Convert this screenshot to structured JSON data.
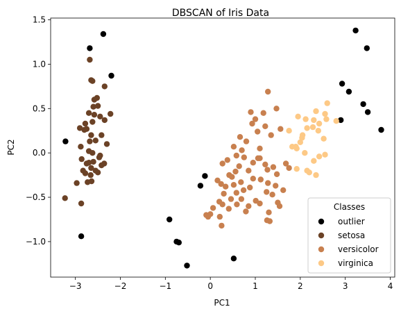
{
  "chart_data": {
    "type": "scatter",
    "title": "DBSCAN of Iris Data",
    "xlabel": "PC1",
    "ylabel": "PC2",
    "xlim": [
      -3.55,
      4.1
    ],
    "ylim": [
      -1.4,
      1.52
    ],
    "xticks": [
      -3,
      -2,
      -1,
      0,
      1,
      2,
      3,
      4
    ],
    "yticks": [
      -1.0,
      -0.5,
      0.0,
      0.5,
      1.0,
      1.5
    ],
    "xtick_labels": [
      "−3",
      "−2",
      "−1",
      "0",
      "1",
      "2",
      "3",
      "4"
    ],
    "ytick_labels": [
      "−1.0",
      "−0.5",
      "0.0",
      "0.5",
      "1.0",
      "1.5"
    ],
    "grid": false,
    "legend": {
      "title": "Classes",
      "placement": "lower-right"
    },
    "series": [
      {
        "name": "outlier",
        "color": "#000000",
        "points": [
          [
            -2.38,
            1.34
          ],
          [
            -2.68,
            1.18
          ],
          [
            -2.2,
            0.87
          ],
          [
            -3.22,
            0.13
          ],
          [
            -2.87,
            -0.94
          ],
          [
            -0.91,
            -0.75
          ],
          [
            -0.75,
            -1.0
          ],
          [
            -0.7,
            -1.01
          ],
          [
            -0.52,
            -1.27
          ],
          [
            -0.22,
            -0.37
          ],
          [
            -0.12,
            -0.26
          ],
          [
            0.52,
            -1.19
          ],
          [
            2.93,
            0.78
          ],
          [
            3.08,
            0.69
          ],
          [
            3.23,
            1.38
          ],
          [
            3.48,
            1.18
          ],
          [
            3.4,
            0.55
          ],
          [
            3.5,
            0.46
          ],
          [
            3.8,
            0.26
          ],
          [
            2.9,
            0.37
          ]
        ]
      },
      {
        "name": "setosa",
        "color": "#6b4226",
        "points": [
          [
            -2.68,
            1.05
          ],
          [
            -2.65,
            0.82
          ],
          [
            -2.62,
            0.81
          ],
          [
            -2.58,
            0.6
          ],
          [
            -2.52,
            0.62
          ],
          [
            -2.6,
            0.52
          ],
          [
            -2.5,
            0.53
          ],
          [
            -2.35,
            0.75
          ],
          [
            -2.22,
            0.44
          ],
          [
            -2.7,
            0.45
          ],
          [
            -2.62,
            0.35
          ],
          [
            -2.78,
            0.33
          ],
          [
            -2.75,
            0.27
          ],
          [
            -2.8,
            0.26
          ],
          [
            -2.45,
            0.41
          ],
          [
            -2.35,
            0.37
          ],
          [
            -2.65,
            0.2
          ],
          [
            -2.68,
            0.13
          ],
          [
            -2.55,
            0.14
          ],
          [
            -2.42,
            0.2
          ],
          [
            -2.3,
            0.1
          ],
          [
            -2.88,
            0.07
          ],
          [
            -2.62,
            0.0
          ],
          [
            -2.7,
            0.02
          ],
          [
            -2.45,
            -0.03
          ],
          [
            -2.86,
            -0.07
          ],
          [
            -2.75,
            -0.12
          ],
          [
            -2.6,
            -0.1
          ],
          [
            -2.36,
            -0.12
          ],
          [
            -2.65,
            -0.17
          ],
          [
            -2.83,
            -0.2
          ],
          [
            -2.78,
            -0.23
          ],
          [
            -2.66,
            -0.25
          ],
          [
            -2.55,
            -0.2
          ],
          [
            -2.42,
            -0.14
          ],
          [
            -2.73,
            -0.33
          ],
          [
            -2.64,
            -0.32
          ],
          [
            -2.97,
            -0.34
          ],
          [
            -2.87,
            -0.57
          ],
          [
            -3.23,
            -0.51
          ],
          [
            -2.5,
            -0.22
          ],
          [
            -2.58,
            0.43
          ],
          [
            -2.7,
            -0.11
          ],
          [
            -2.9,
            0.28
          ],
          [
            -2.47,
            -0.05
          ]
        ]
      },
      {
        "name": "versicolor",
        "color": "#c8804f",
        "points": [
          [
            1.28,
            0.69
          ],
          [
            1.47,
            0.5
          ],
          [
            1.18,
            0.45
          ],
          [
            0.9,
            0.46
          ],
          [
            1.56,
            0.27
          ],
          [
            1.0,
            0.38
          ],
          [
            1.22,
            0.3
          ],
          [
            0.93,
            0.33
          ],
          [
            1.05,
            0.24
          ],
          [
            1.35,
            0.2
          ],
          [
            0.66,
            0.18
          ],
          [
            0.8,
            0.13
          ],
          [
            0.52,
            0.07
          ],
          [
            1.1,
            0.05
          ],
          [
            0.58,
            -0.03
          ],
          [
            0.75,
            -0.05
          ],
          [
            1.06,
            -0.06
          ],
          [
            0.95,
            -0.11
          ],
          [
            0.38,
            -0.08
          ],
          [
            0.64,
            -0.15
          ],
          [
            0.27,
            -0.12
          ],
          [
            0.56,
            -0.21
          ],
          [
            0.85,
            -0.2
          ],
          [
            0.42,
            -0.25
          ],
          [
            1.22,
            -0.13
          ],
          [
            1.4,
            -0.16
          ],
          [
            1.27,
            -0.19
          ],
          [
            1.68,
            -0.12
          ],
          [
            1.48,
            -0.24
          ],
          [
            1.75,
            -0.17
          ],
          [
            0.16,
            -0.31
          ],
          [
            0.24,
            -0.35
          ],
          [
            0.34,
            -0.38
          ],
          [
            0.52,
            -0.36
          ],
          [
            0.68,
            -0.33
          ],
          [
            0.95,
            -0.29
          ],
          [
            1.12,
            -0.3
          ],
          [
            1.28,
            -0.34
          ],
          [
            1.45,
            -0.37
          ],
          [
            0.3,
            -0.46
          ],
          [
            0.58,
            -0.45
          ],
          [
            0.74,
            -0.42
          ],
          [
            0.88,
            -0.39
          ],
          [
            1.25,
            -0.44
          ],
          [
            1.62,
            -0.42
          ],
          [
            0.2,
            -0.55
          ],
          [
            0.46,
            -0.52
          ],
          [
            0.69,
            -0.52
          ],
          [
            1.01,
            -0.54
          ],
          [
            1.38,
            -0.47
          ],
          [
            0.27,
            -0.58
          ],
          [
            0.59,
            -0.58
          ],
          [
            0.85,
            -0.6
          ],
          [
            1.1,
            -0.57
          ],
          [
            1.5,
            -0.56
          ],
          [
            0.06,
            -0.62
          ],
          [
            0.41,
            -0.63
          ],
          [
            0.79,
            -0.66
          ],
          [
            1.3,
            -0.67
          ],
          [
            1.54,
            -0.6
          ],
          [
            -0.09,
            -0.7
          ],
          [
            0.0,
            -0.69
          ],
          [
            0.21,
            -0.72
          ],
          [
            1.26,
            -0.76
          ],
          [
            1.32,
            -0.77
          ],
          [
            0.25,
            -0.82
          ],
          [
            -0.05,
            -0.72
          ],
          [
            1.1,
            -0.06
          ],
          [
            0.7,
            0.03
          ],
          [
            0.48,
            -0.27
          ]
        ]
      },
      {
        "name": "virginica",
        "color": "#fdc986",
        "points": [
          [
            2.6,
            0.56
          ],
          [
            2.35,
            0.47
          ],
          [
            1.95,
            0.41
          ],
          [
            2.12,
            0.38
          ],
          [
            2.55,
            0.44
          ],
          [
            2.3,
            0.37
          ],
          [
            2.42,
            0.33
          ],
          [
            2.28,
            0.29
          ],
          [
            2.15,
            0.28
          ],
          [
            2.05,
            0.2
          ],
          [
            1.75,
            0.25
          ],
          [
            2.4,
            0.25
          ],
          [
            2.58,
            0.38
          ],
          [
            2.8,
            0.36
          ],
          [
            2.0,
            0.12
          ],
          [
            2.52,
            0.16
          ],
          [
            1.82,
            0.07
          ],
          [
            1.92,
            0.05
          ],
          [
            2.1,
            0.0
          ],
          [
            2.55,
            -0.02
          ],
          [
            2.42,
            -0.04
          ],
          [
            2.3,
            -0.09
          ],
          [
            1.92,
            -0.18
          ],
          [
            2.15,
            -0.2
          ],
          [
            2.2,
            -0.22
          ],
          [
            2.35,
            -0.25
          ],
          [
            1.9,
            0.07
          ],
          [
            2.04,
            0.17
          ]
        ]
      }
    ]
  }
}
